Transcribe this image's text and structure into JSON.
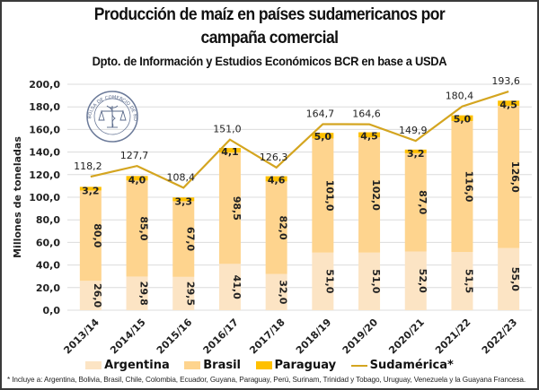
{
  "chart_data": {
    "type": "bar",
    "stacked": true,
    "title": "Producción de maíz en países sudamericanos por campaña comercial",
    "title_lines": [
      "Producción de maíz en países sudamericanos por",
      "campaña comercial"
    ],
    "subtitle": "Dpto. de Información y Estudios Económicos BCR en base a USDA",
    "xlabel": "",
    "ylabel": "Millones de toneladas",
    "ylim": [
      0,
      200
    ],
    "yticks": [
      "0,0",
      "20,0",
      "40,0",
      "60,0",
      "80,0",
      "100,0",
      "120,0",
      "140,0",
      "160,0",
      "180,0",
      "200,0"
    ],
    "ytick_values": [
      0,
      20,
      40,
      60,
      80,
      100,
      120,
      140,
      160,
      180,
      200
    ],
    "grid": true,
    "categories": [
      "2013/14",
      "2014/15",
      "2015/16",
      "2016/17",
      "2017/18",
      "2018/19",
      "2019/20",
      "2020/21",
      "2021/22",
      "2022/23"
    ],
    "series": [
      {
        "name": "Argentina",
        "type": "bar",
        "color": "#FCE4C4",
        "values": [
          26.0,
          29.8,
          29.5,
          41.0,
          32.0,
          51.0,
          51.0,
          52.0,
          51.5,
          55.0
        ],
        "labels": [
          "26,0",
          "29,8",
          "29,5",
          "41,0",
          "32,0",
          "51,0",
          "51,0",
          "52,0",
          "51,5",
          "55,0"
        ]
      },
      {
        "name": "Brasil",
        "type": "bar",
        "color": "#FED48E",
        "values": [
          80.0,
          85.0,
          67.0,
          98.5,
          82.0,
          101.0,
          102.0,
          87.0,
          116.0,
          126.0
        ],
        "labels": [
          "80,0",
          "85,0",
          "67,0",
          "98,5",
          "82,0",
          "101,0",
          "102,0",
          "87,0",
          "116,0",
          "126,0"
        ]
      },
      {
        "name": "Paraguay",
        "type": "bar",
        "color": "#FFC000",
        "values": [
          3.2,
          4.0,
          3.3,
          4.1,
          4.6,
          5.0,
          4.5,
          3.2,
          5.0,
          4.5
        ],
        "labels": [
          "3,2",
          "4,0",
          "3,3",
          "4,1",
          "4,6",
          "5,0",
          "4,5",
          "3,2",
          "5,0",
          "4,5"
        ]
      },
      {
        "name": "Sudamérica*",
        "type": "line",
        "color": "#D4A520",
        "values": [
          118.2,
          127.7,
          108.4,
          151.0,
          126.3,
          164.7,
          164.6,
          149.9,
          180.4,
          193.6
        ],
        "labels": [
          "118,2",
          "127,7",
          "108,4",
          "151,0",
          "126,3",
          "164,7",
          "164,6",
          "149,9",
          "180,4",
          "193,6"
        ]
      }
    ],
    "legend": {
      "position": "bottom",
      "entries": [
        "Argentina",
        "Brasil",
        "Paraguay",
        "Sudamérica*"
      ]
    },
    "footnote": "* Incluye a: Argentina, Bolivia, Brasil, Chile, Colombia, Ecuador, Guyana, Paraguay, Perú, Surinam, Trinidad y Tobago, Uruguay, Venezuela y la Guayana Francesa.",
    "watermark": "BOLSA DE COMERCIO DE ROSARIO"
  }
}
